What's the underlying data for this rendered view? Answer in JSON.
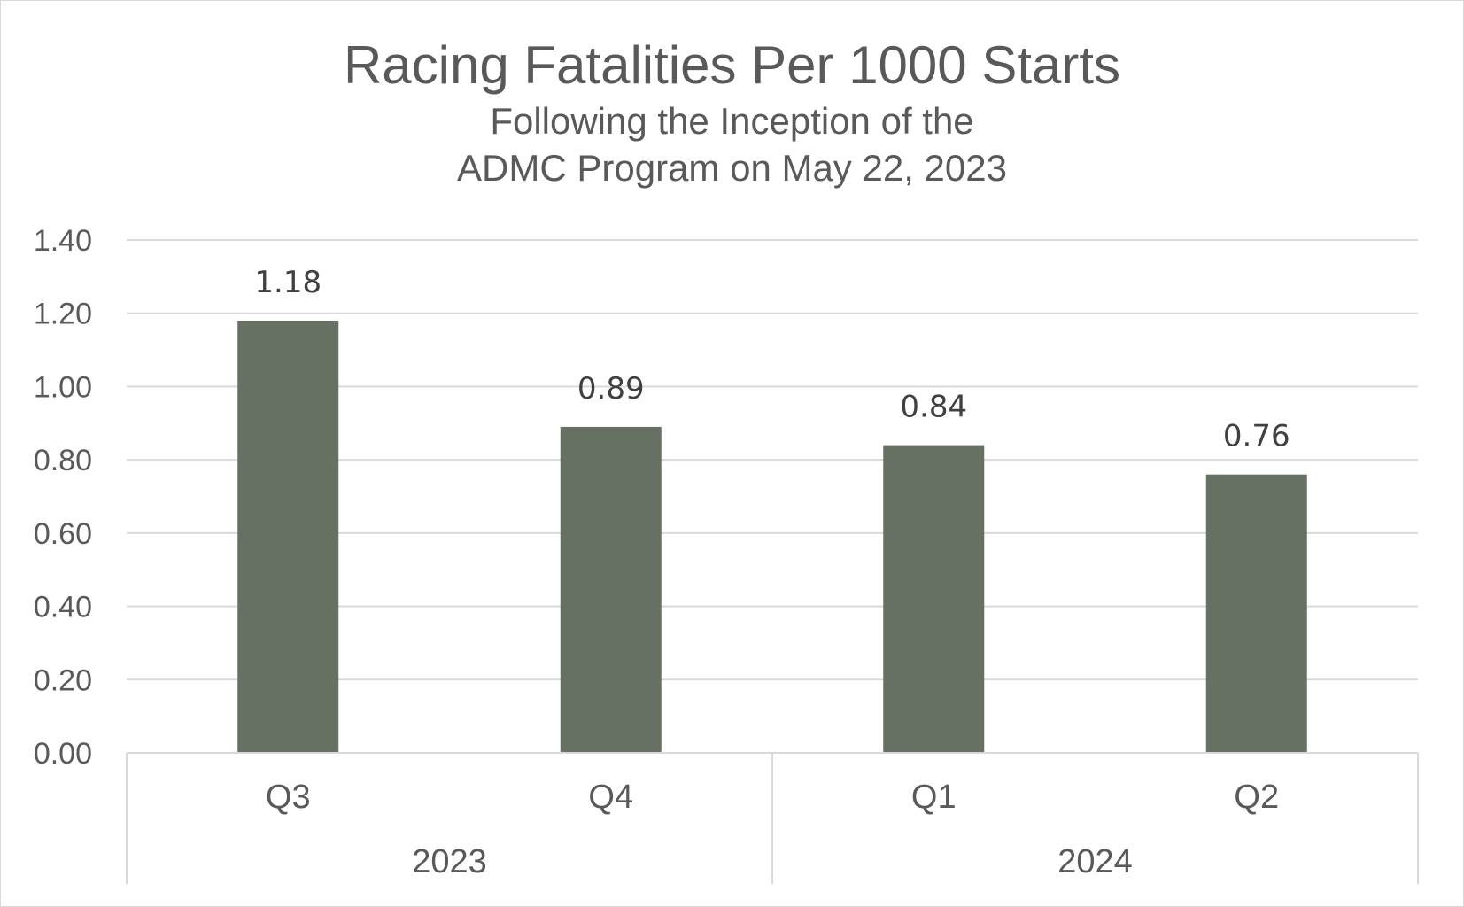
{
  "chart_data": {
    "type": "bar",
    "title": "Racing Fatalities Per 1000 Starts",
    "subtitle_lines": [
      "Following the Inception of the",
      "ADMC Program on May 22, 2023"
    ],
    "categories": [
      "Q3",
      "Q4",
      "Q1",
      "Q2"
    ],
    "groups": [
      {
        "label": "2023",
        "categories": [
          "Q3",
          "Q4"
        ]
      },
      {
        "label": "2024",
        "categories": [
          "Q1",
          "Q2"
        ]
      }
    ],
    "values": [
      1.18,
      0.89,
      0.84,
      0.76
    ],
    "data_labels": [
      "1.18",
      "0.89",
      "0.84",
      "0.76"
    ],
    "y_ticks": [
      "0.00",
      "0.20",
      "0.40",
      "0.60",
      "0.80",
      "1.00",
      "1.20",
      "1.40"
    ],
    "ylim": [
      0,
      1.4
    ],
    "grid": true,
    "legend": "none",
    "colors": {
      "bar": "#667163",
      "grid": "#d9d9d9",
      "axis": "#d9d9d9",
      "text": "#595959",
      "data_label": "#404040"
    }
  }
}
